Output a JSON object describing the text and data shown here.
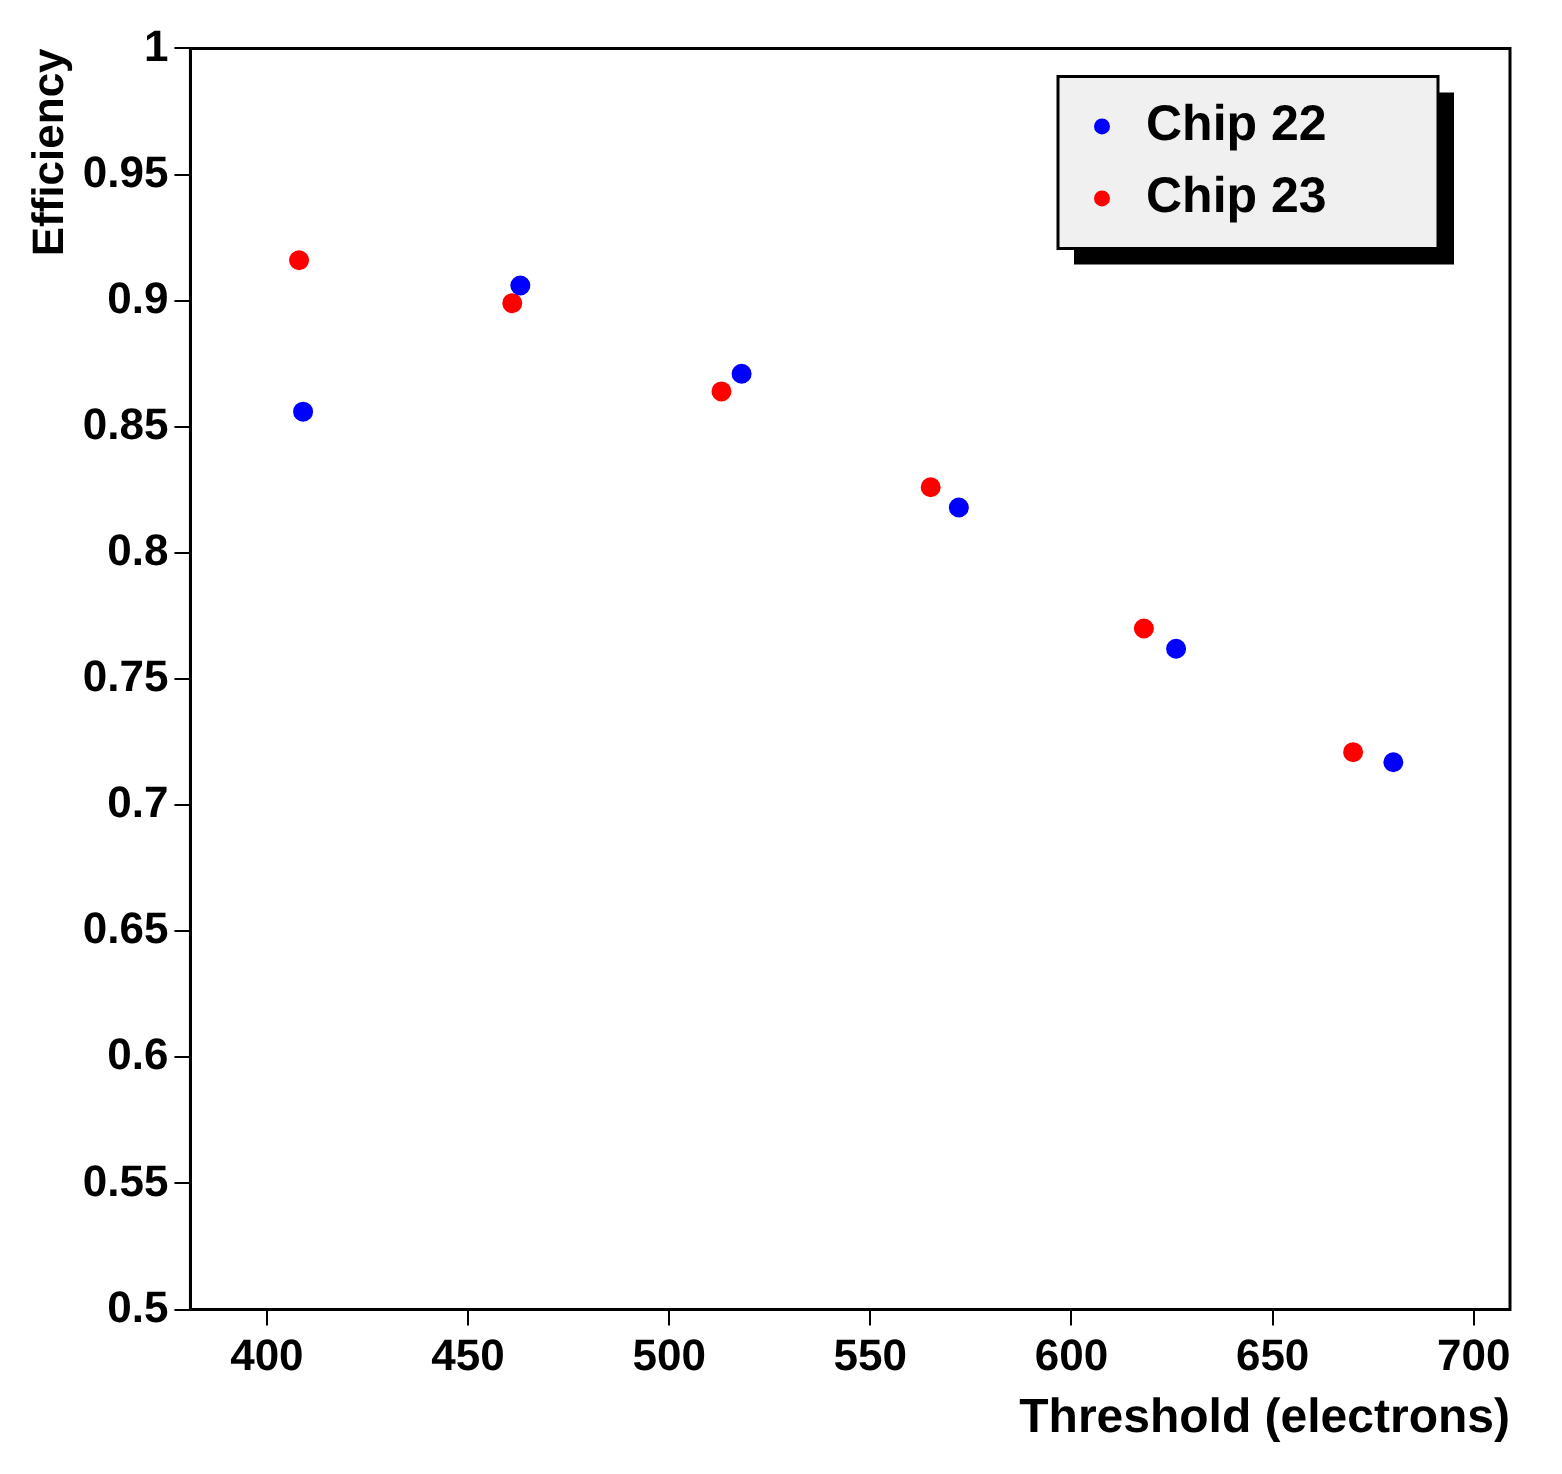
{
  "chart_data": {
    "type": "scatter",
    "xlabel": "Threshold (electrons)",
    "ylabel": "Efficiency",
    "xlim": [
      381,
      709
    ],
    "xticks": [
      400,
      450,
      500,
      550,
      600,
      650,
      700
    ],
    "ylim": [
      0.5,
      1
    ],
    "yticks": [
      0.5,
      0.55,
      0.6,
      0.65,
      0.7,
      0.75,
      0.8,
      0.85,
      0.9,
      0.95,
      1
    ],
    "grid": false,
    "legend": "top right",
    "marker": "circle",
    "series": [
      {
        "name": "Chip 22",
        "color": "#0000ff",
        "x": [
          409,
          463,
          518,
          572,
          626,
          680
        ],
        "values": [
          0.856,
          0.906,
          0.871,
          0.818,
          0.762,
          0.717
        ]
      },
      {
        "name": "Chip 23",
        "color": "#ff0000",
        "x": [
          408,
          461,
          513,
          565,
          618,
          670
        ],
        "values": [
          0.916,
          0.899,
          0.864,
          0.826,
          0.77,
          0.721
        ]
      }
    ]
  }
}
